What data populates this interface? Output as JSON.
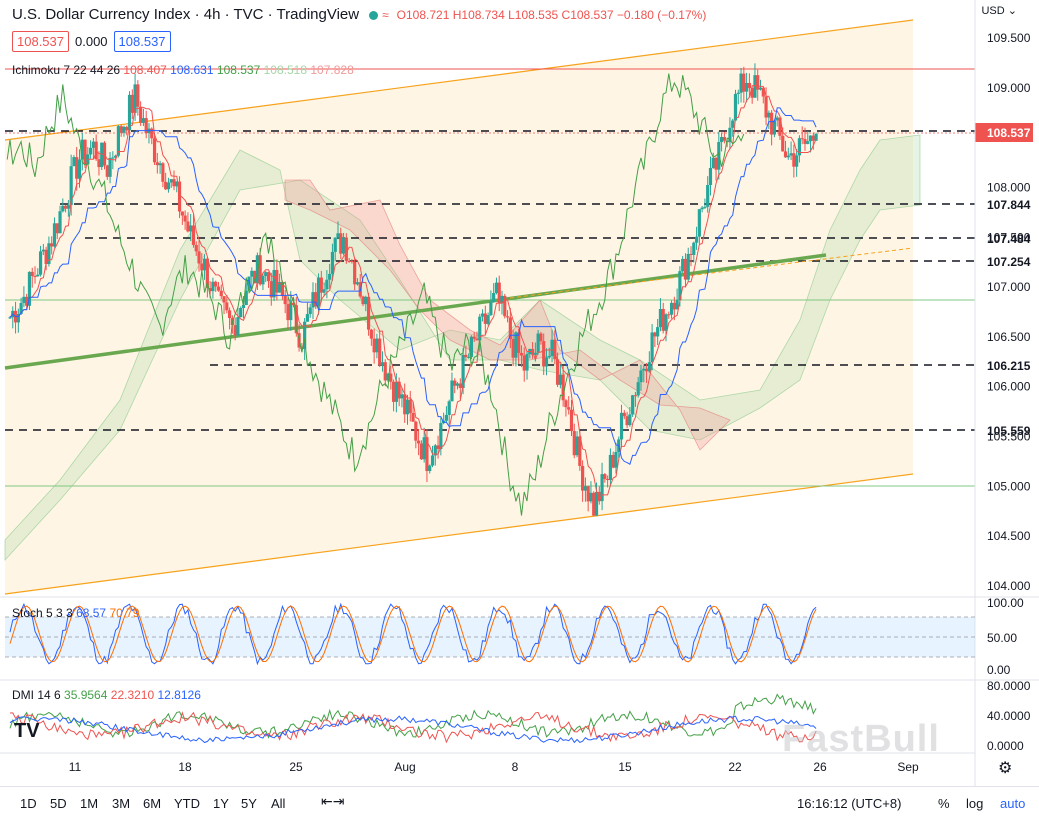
{
  "header": {
    "title": "U.S. Dollar Currency Index · 4h · TVC · TradingView",
    "wave_icon": "≈",
    "open": "O108.721",
    "high": "H108.734",
    "low": "L108.535",
    "close": "C108.537",
    "change": "−0.180 (−0.17%)"
  },
  "price_boxes": {
    "bid": "108.537",
    "spread": "0.000",
    "ask": "108.537"
  },
  "currency": "USD",
  "ichimoku": {
    "name": "Ichimoku 7 22 44 26",
    "v1": "108.407",
    "v2": "108.631",
    "v3": "108.537",
    "v4": "108.518",
    "v5": "107.828"
  },
  "stoch": {
    "name": "Stoch 5 3 3",
    "k": "68.57",
    "d": "70.79"
  },
  "dmi": {
    "name": "DMI 14 6",
    "v1": "35.9564",
    "v2": "22.3210",
    "v3": "12.8126"
  },
  "toolbar": {
    "timeframes": [
      "1D",
      "5D",
      "1M",
      "3M",
      "6M",
      "YTD",
      "1Y",
      "5Y",
      "All"
    ],
    "time": "16:16:12 (UTC+8)",
    "percent": "%",
    "log": "log",
    "auto": "auto"
  },
  "watermark": "FastBull",
  "logo": "TV",
  "colors": {
    "up": "#26a69a",
    "down": "#ef5350",
    "tenkan": "#ef5350",
    "kijun": "#2962ff",
    "chikou": "#43a047",
    "channel": "#f7a21b"
  },
  "chart_data": {
    "type": "candlestick",
    "symbol": "U.S. Dollar Currency Index",
    "interval": "4h",
    "price_axis": {
      "min": 104.0,
      "max": 109.5,
      "ticks": [
        109.5,
        109.0,
        108.5,
        108.0,
        107.5,
        107.0,
        106.5,
        106.0,
        105.5,
        105.0,
        104.5,
        104.0
      ]
    },
    "x_ticks": [
      "11",
      "18",
      "25",
      "Aug",
      "8",
      "15",
      "22",
      "26",
      "Sep"
    ],
    "last_price": "108.537",
    "levels": [
      "107.844",
      "107.484",
      "107.254",
      "106.215",
      "105.559"
    ],
    "close_series": [
      106.7,
      106.9,
      107.2,
      107.5,
      107.9,
      108.3,
      108.4,
      108.2,
      108.6,
      108.9,
      108.5,
      108.2,
      107.9,
      107.5,
      107.2,
      106.8,
      106.6,
      107.0,
      107.2,
      107.0,
      106.8,
      106.5,
      106.9,
      107.3,
      107.5,
      107.1,
      106.6,
      106.2,
      105.9,
      105.6,
      105.3,
      105.6,
      106.0,
      106.3,
      106.6,
      106.9,
      106.5,
      106.2,
      106.4,
      106.3,
      105.9,
      105.2,
      104.8,
      105.1,
      105.6,
      106.0,
      106.4,
      106.7,
      107.0,
      107.4,
      107.9,
      108.3,
      108.8,
      109.1,
      108.9,
      108.6,
      108.3,
      108.4,
      108.537
    ],
    "stoch_axis": {
      "ticks": [
        "100.00",
        "50.00",
        "0.00"
      ]
    },
    "dmi_axis": {
      "ticks": [
        "80.0000",
        "40.0000",
        "0.0000"
      ]
    }
  }
}
